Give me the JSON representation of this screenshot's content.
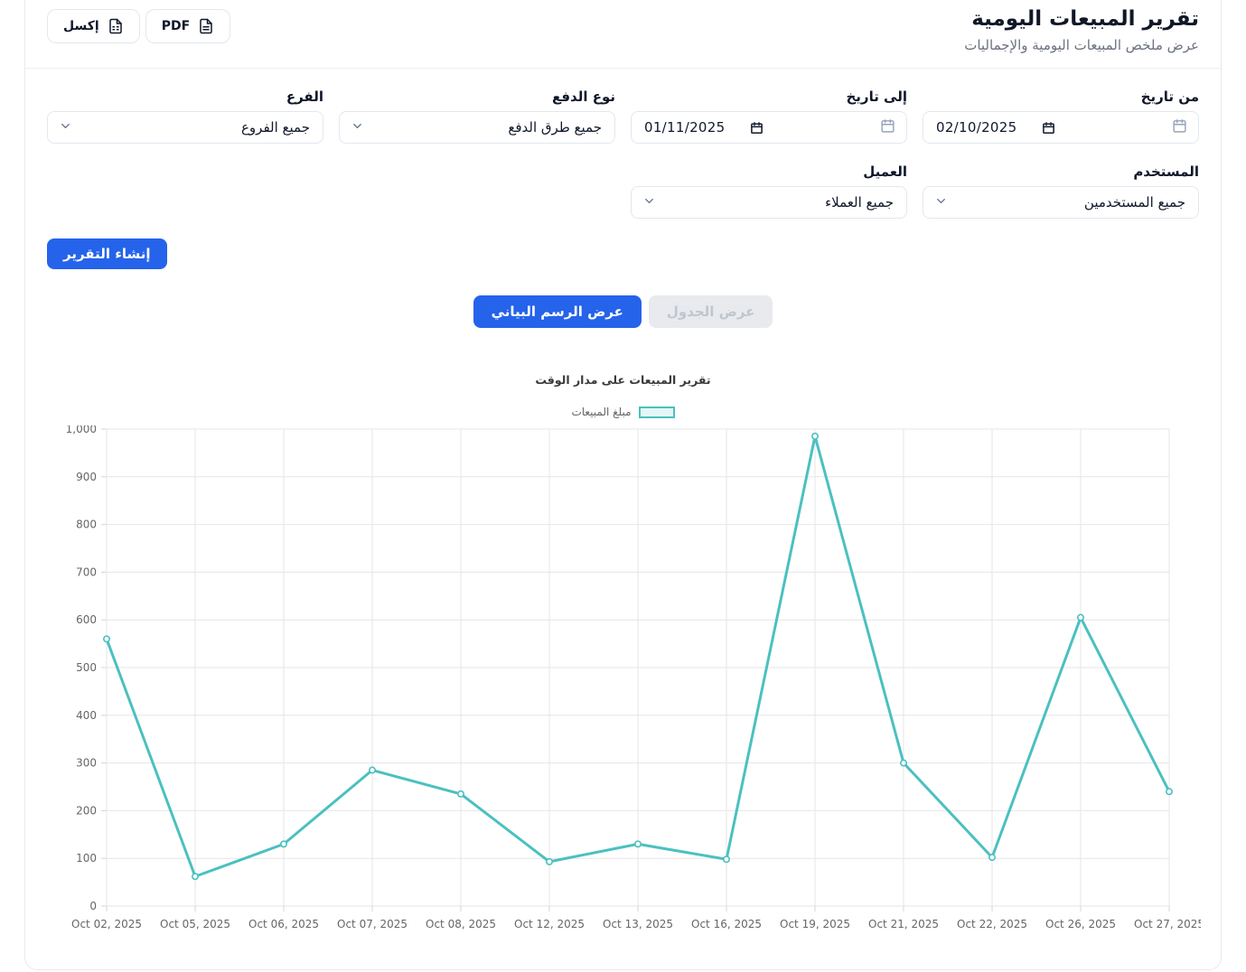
{
  "header": {
    "title": "تقرير المبيعات اليومية",
    "subtitle": "عرض ملخص المبيعات اليومية والإجماليات",
    "export_pdf_label": "PDF",
    "export_excel_label": "إكسل"
  },
  "filters": {
    "from_date": {
      "label": "من تاريخ",
      "value": "02/10/2025"
    },
    "to_date": {
      "label": "إلى تاريخ",
      "value": "01/11/2025"
    },
    "payment_type": {
      "label": "نوع الدفع",
      "value": "جميع طرق الدفع"
    },
    "branch": {
      "label": "الفرع",
      "value": "جميع الفروع"
    },
    "user": {
      "label": "المستخدم",
      "value": "جميع المستخدمين"
    },
    "customer": {
      "label": "العميل",
      "value": "جميع العملاء"
    },
    "generate_label": "إنشاء التقرير"
  },
  "tabs": {
    "chart_view_label": "عرض الرسم البياني",
    "table_view_label": "عرض الجدول"
  },
  "icons": {
    "pdf_button": "file-text-icon",
    "excel_button": "file-spreadsheet-icon",
    "date_fields": [
      "calendar-picker-icon",
      "calendar-icon"
    ],
    "selects": "chevron-down-icon"
  },
  "colors": {
    "accent_blue": "#2563eb",
    "chart_teal": "#4bc0c0",
    "legend_fill": "#e4f6f6",
    "grid_line": "#e6e6e6",
    "tick_text": "#666666",
    "disabled_tab_bg": "#e8eaee",
    "disabled_tab_text": "#c0c6cf"
  },
  "chart_data": {
    "type": "line",
    "title": "تقرير المبيعات على مدار الوقت",
    "legend_label": "مبلغ المبيعات",
    "legend_position": "top",
    "grid": true,
    "categories": [
      "Oct 02, 2025",
      "Oct 05, 2025",
      "Oct 06, 2025",
      "Oct 07, 2025",
      "Oct 08, 2025",
      "Oct 12, 2025",
      "Oct 13, 2025",
      "Oct 16, 2025",
      "Oct 19, 2025",
      "Oct 21, 2025",
      "Oct 22, 2025",
      "Oct 26, 2025",
      "Oct 27, 2025"
    ],
    "series": [
      {
        "name": "مبلغ المبيعات",
        "values": [
          560,
          62,
          130,
          285,
          235,
          93,
          130,
          98,
          985,
          300,
          102,
          605,
          240
        ]
      }
    ],
    "ylim": [
      0,
      1000
    ],
    "ytick_step": 100,
    "line_color": "#4bc0c0",
    "point_fill": "#ffffff"
  }
}
